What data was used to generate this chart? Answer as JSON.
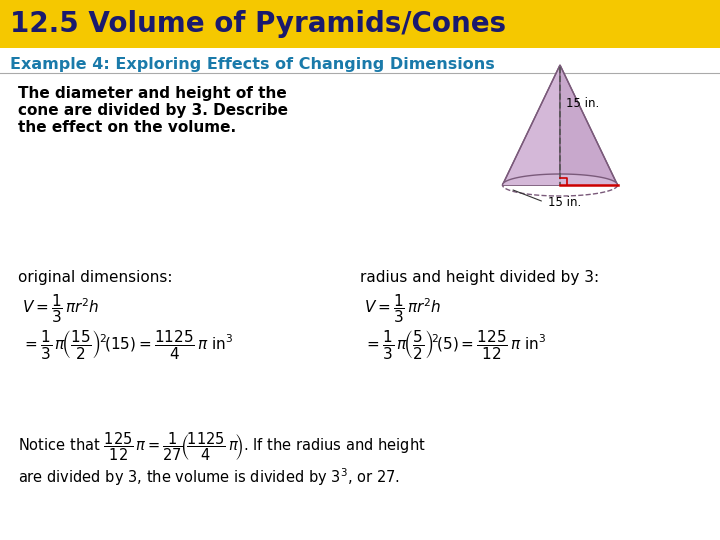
{
  "title": "12.5 Volume of Pyramids/Cones",
  "title_bg": "#F5C800",
  "title_color": "#1a1a6e",
  "example_label": "Example 4: Exploring Effects of Changing Dimensions",
  "example_color": "#1a7aaa",
  "problem_text_line1": "The diameter and height of the",
  "problem_text_line2": "cone are divided by 3. Describe",
  "problem_text_line3": "the effect on the volume.",
  "problem_color": "#000000",
  "orig_label": "original dimensions:",
  "new_label": "radius and height divided by 3:",
  "body_bg": "#ffffff",
  "label_color": "#000000",
  "cone_color": "#c8a8cc",
  "cone_edge": "#7a5a7a",
  "title_bar_height": 48,
  "title_fontsize": 20,
  "example_fontsize": 11.5,
  "problem_fontsize": 11,
  "label_fontsize": 11,
  "formula_fontsize": 11,
  "notice_fontsize": 10.5
}
